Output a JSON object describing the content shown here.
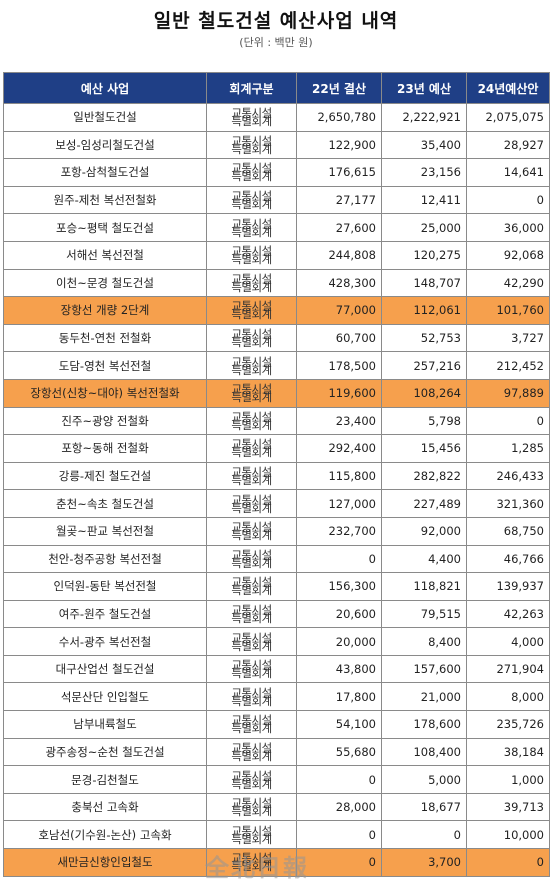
{
  "title": "일반 철도건설 예산사업 내역",
  "unit": "(단위 : 백만 원)",
  "headers": [
    "예산 사업",
    "회계구분",
    "22년 결산",
    "23년 예산",
    "24년예산안"
  ],
  "account_label": [
    "교통시설",
    "특별회계"
  ],
  "watermark": "全北日報",
  "highlight_color": "#f6a04d",
  "header_color": "#1f3f86",
  "rows": [
    {
      "name": "일반철도건설",
      "v22": "2,650,780",
      "v23": "2,222,921",
      "v24": "2,075,075",
      "highlight": false
    },
    {
      "name": "보성-임성리철도건설",
      "v22": "122,900",
      "v23": "35,400",
      "v24": "28,927",
      "highlight": false
    },
    {
      "name": "포항-삼척철도건설",
      "v22": "176,615",
      "v23": "23,156",
      "v24": "14,641",
      "highlight": false
    },
    {
      "name": "원주-제천 복선전철화",
      "v22": "27,177",
      "v23": "12,411",
      "v24": "0",
      "highlight": false
    },
    {
      "name": "포승~평택 철도건설",
      "v22": "27,600",
      "v23": "25,000",
      "v24": "36,000",
      "highlight": false
    },
    {
      "name": "서해선 복선전철",
      "v22": "244,808",
      "v23": "120,275",
      "v24": "92,068",
      "highlight": false
    },
    {
      "name": "이천~문경 철도건설",
      "v22": "428,300",
      "v23": "148,707",
      "v24": "42,290",
      "highlight": false
    },
    {
      "name": "장항선 개량 2단계",
      "v22": "77,000",
      "v23": "112,061",
      "v24": "101,760",
      "highlight": true
    },
    {
      "name": "동두천-연천 전철화",
      "v22": "60,700",
      "v23": "52,753",
      "v24": "3,727",
      "highlight": false
    },
    {
      "name": "도담-영천 복선전철",
      "v22": "178,500",
      "v23": "257,216",
      "v24": "212,452",
      "highlight": false
    },
    {
      "name": "장항선(신창~대야) 복선전철화",
      "v22": "119,600",
      "v23": "108,264",
      "v24": "97,889",
      "highlight": true
    },
    {
      "name": "진주~광양 전철화",
      "v22": "23,400",
      "v23": "5,798",
      "v24": "0",
      "highlight": false
    },
    {
      "name": "포항~동해 전철화",
      "v22": "292,400",
      "v23": "15,456",
      "v24": "1,285",
      "highlight": false
    },
    {
      "name": "강릉-제진 철도건설",
      "v22": "115,800",
      "v23": "282,822",
      "v24": "246,433",
      "highlight": false
    },
    {
      "name": "춘천~속초 철도건설",
      "v22": "127,000",
      "v23": "227,489",
      "v24": "321,360",
      "highlight": false
    },
    {
      "name": "월곶~판교 복선전철",
      "v22": "232,700",
      "v23": "92,000",
      "v24": "68,750",
      "highlight": false
    },
    {
      "name": "천안-청주공항 복선전철",
      "v22": "0",
      "v23": "4,400",
      "v24": "46,766",
      "highlight": false
    },
    {
      "name": "인덕원-동탄 복선전철",
      "v22": "156,300",
      "v23": "118,821",
      "v24": "139,937",
      "highlight": false
    },
    {
      "name": "여주-원주 철도건설",
      "v22": "20,600",
      "v23": "79,515",
      "v24": "42,263",
      "highlight": false
    },
    {
      "name": "수서-광주 복선전철",
      "v22": "20,000",
      "v23": "8,400",
      "v24": "4,000",
      "highlight": false
    },
    {
      "name": "대구산업선 철도건설",
      "v22": "43,800",
      "v23": "157,600",
      "v24": "271,904",
      "highlight": false
    },
    {
      "name": "석문산단 인입철도",
      "v22": "17,800",
      "v23": "21,000",
      "v24": "8,000",
      "highlight": false
    },
    {
      "name": "남부내륙철도",
      "v22": "54,100",
      "v23": "178,600",
      "v24": "235,726",
      "highlight": false
    },
    {
      "name": "광주송정~순천 철도건설",
      "v22": "55,680",
      "v23": "108,400",
      "v24": "38,184",
      "highlight": false
    },
    {
      "name": "문경-김천철도",
      "v22": "0",
      "v23": "5,000",
      "v24": "1,000",
      "highlight": false
    },
    {
      "name": "충북선 고속화",
      "v22": "28,000",
      "v23": "18,677",
      "v24": "39,713",
      "highlight": false
    },
    {
      "name": "호남선(기수원-논산) 고속화",
      "v22": "0",
      "v23": "0",
      "v24": "10,000",
      "highlight": false
    },
    {
      "name": "새만금신항인입철도",
      "v22": "0",
      "v23": "3,700",
      "v24": "0",
      "highlight": true
    }
  ]
}
